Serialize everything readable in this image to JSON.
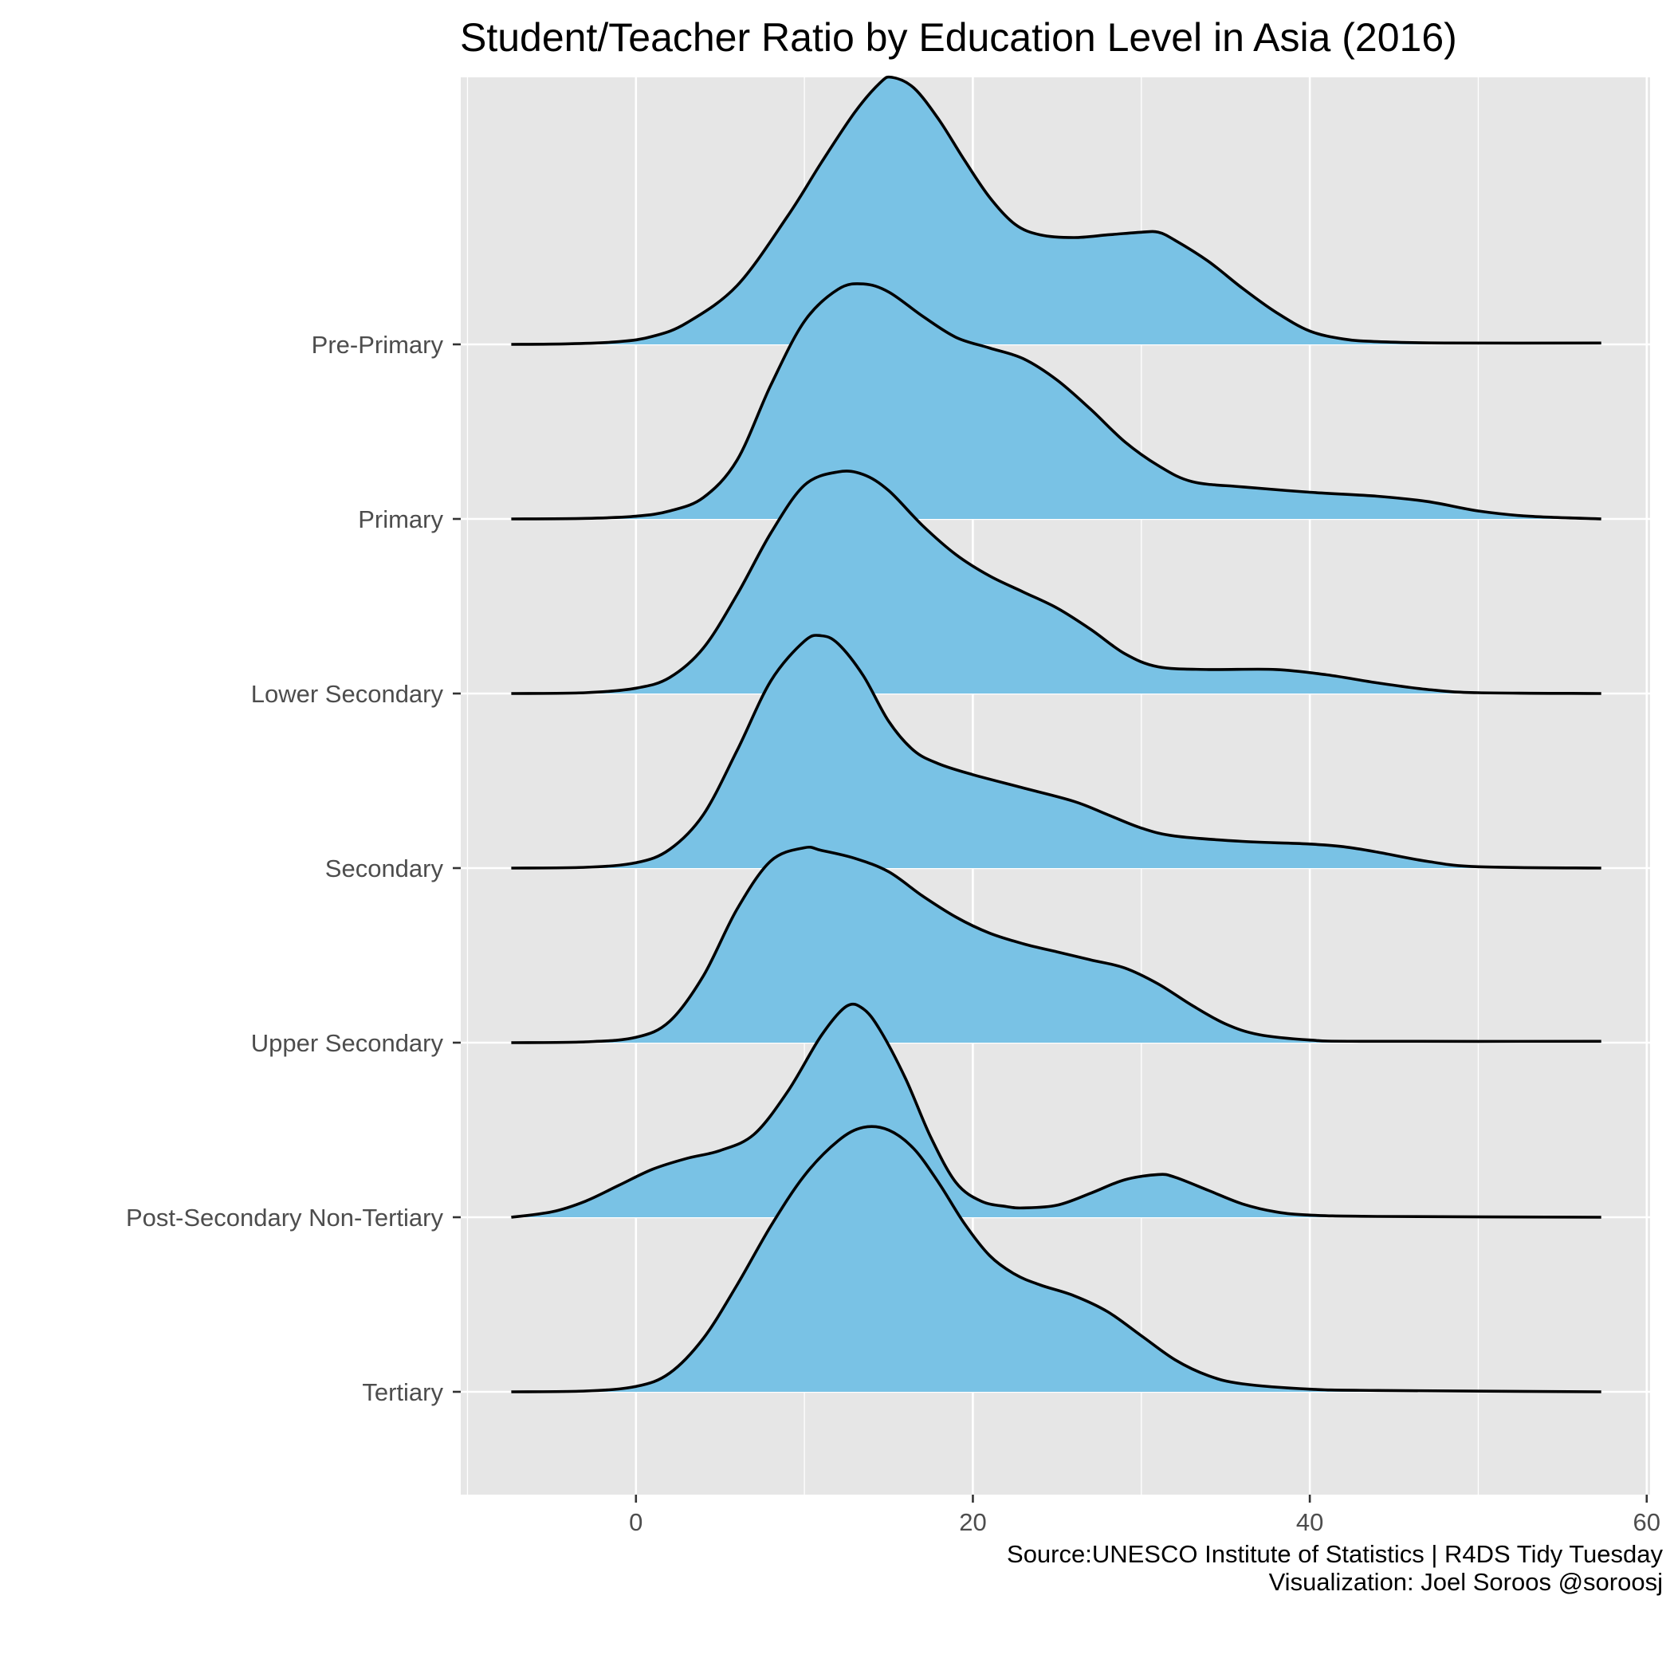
{
  "chart_data": {
    "type": "ridgeline",
    "title": "Student/Teacher Ratio by Education Level in Asia (2016)",
    "caption_lines": [
      "Source:UNESCO Institute of Statistics  |  R4DS Tidy Tuesday",
      "Visualization: Joel Soroos @soroosj"
    ],
    "xlim": [
      -10.4,
      60.2
    ],
    "x_ticks": [
      0,
      20,
      40,
      60
    ],
    "x_tick_labels": [
      "0",
      "20",
      "40",
      "60"
    ],
    "grid": true,
    "density_range": [
      -7.4,
      57.3
    ],
    "colors": {
      "fill": "#79c2e5",
      "line": "#000000",
      "panel": "#e6e6e6"
    },
    "categories": [
      "Pre-Primary",
      "Primary",
      "Lower Secondary",
      "Secondary",
      "Upper Secondary",
      "Post-Secondary Non-Tertiary",
      "Tertiary"
    ],
    "series": [
      {
        "category": "Pre-Primary",
        "points": [
          [
            -7.4,
            0
          ],
          [
            -4,
            0.002
          ],
          [
            -1,
            0.01
          ],
          [
            1,
            0.03
          ],
          [
            3,
            0.08
          ],
          [
            6,
            0.22
          ],
          [
            9,
            0.48
          ],
          [
            11,
            0.68
          ],
          [
            13,
            0.87
          ],
          [
            14.5,
            0.98
          ],
          [
            15.2,
            1.0
          ],
          [
            16.5,
            0.96
          ],
          [
            18,
            0.84
          ],
          [
            19.5,
            0.69
          ],
          [
            21,
            0.55
          ],
          [
            22.5,
            0.45
          ],
          [
            24,
            0.41
          ],
          [
            26,
            0.4
          ],
          [
            28,
            0.41
          ],
          [
            30,
            0.42
          ],
          [
            31,
            0.42
          ],
          [
            32,
            0.39
          ],
          [
            34,
            0.31
          ],
          [
            36,
            0.21
          ],
          [
            38,
            0.12
          ],
          [
            40,
            0.05
          ],
          [
            42,
            0.02
          ],
          [
            44,
            0.01
          ],
          [
            48,
            0.005
          ],
          [
            57.3,
            0.005
          ]
        ]
      },
      {
        "category": "Primary",
        "points": [
          [
            -7.4,
            0
          ],
          [
            -3,
            0.002
          ],
          [
            0,
            0.01
          ],
          [
            2,
            0.03
          ],
          [
            4,
            0.08
          ],
          [
            6,
            0.22
          ],
          [
            8,
            0.5
          ],
          [
            10,
            0.74
          ],
          [
            12,
            0.86
          ],
          [
            13.5,
            0.88
          ],
          [
            15,
            0.85
          ],
          [
            17,
            0.76
          ],
          [
            19,
            0.68
          ],
          [
            21,
            0.64
          ],
          [
            23,
            0.6
          ],
          [
            25,
            0.52
          ],
          [
            27,
            0.41
          ],
          [
            29,
            0.29
          ],
          [
            31,
            0.2
          ],
          [
            33,
            0.14
          ],
          [
            36,
            0.12
          ],
          [
            40,
            0.1
          ],
          [
            44,
            0.085
          ],
          [
            47,
            0.065
          ],
          [
            50,
            0.03
          ],
          [
            53,
            0.01
          ],
          [
            57.3,
            0
          ]
        ]
      },
      {
        "category": "Lower Secondary",
        "points": [
          [
            -7.4,
            0
          ],
          [
            -3,
            0.003
          ],
          [
            0,
            0.02
          ],
          [
            2,
            0.06
          ],
          [
            4,
            0.17
          ],
          [
            6,
            0.37
          ],
          [
            8,
            0.6
          ],
          [
            10,
            0.78
          ],
          [
            12,
            0.83
          ],
          [
            13.5,
            0.82
          ],
          [
            15,
            0.76
          ],
          [
            17,
            0.63
          ],
          [
            19,
            0.52
          ],
          [
            21,
            0.44
          ],
          [
            23,
            0.38
          ],
          [
            25,
            0.32
          ],
          [
            27,
            0.24
          ],
          [
            29,
            0.15
          ],
          [
            31,
            0.1
          ],
          [
            34,
            0.09
          ],
          [
            38,
            0.09
          ],
          [
            41,
            0.07
          ],
          [
            44,
            0.04
          ],
          [
            47,
            0.015
          ],
          [
            50,
            0.003
          ],
          [
            57.3,
            0
          ]
        ]
      },
      {
        "category": "Secondary",
        "points": [
          [
            -7.4,
            0
          ],
          [
            -3,
            0.003
          ],
          [
            0,
            0.02
          ],
          [
            2,
            0.07
          ],
          [
            4,
            0.2
          ],
          [
            6,
            0.44
          ],
          [
            8,
            0.7
          ],
          [
            10,
            0.85
          ],
          [
            11,
            0.87
          ],
          [
            12,
            0.84
          ],
          [
            13.5,
            0.72
          ],
          [
            15,
            0.55
          ],
          [
            16.5,
            0.44
          ],
          [
            18,
            0.39
          ],
          [
            20,
            0.35
          ],
          [
            23,
            0.3
          ],
          [
            26,
            0.25
          ],
          [
            28,
            0.2
          ],
          [
            30,
            0.15
          ],
          [
            32,
            0.12
          ],
          [
            36,
            0.1
          ],
          [
            40,
            0.09
          ],
          [
            42,
            0.08
          ],
          [
            44,
            0.06
          ],
          [
            47,
            0.025
          ],
          [
            50,
            0.005
          ],
          [
            57.3,
            0
          ]
        ]
      },
      {
        "category": "Upper Secondary",
        "points": [
          [
            -7.4,
            0
          ],
          [
            -3,
            0.003
          ],
          [
            0,
            0.02
          ],
          [
            2,
            0.08
          ],
          [
            4,
            0.25
          ],
          [
            6,
            0.5
          ],
          [
            8,
            0.68
          ],
          [
            10,
            0.73
          ],
          [
            11,
            0.72
          ],
          [
            13,
            0.69
          ],
          [
            15,
            0.64
          ],
          [
            17,
            0.55
          ],
          [
            19,
            0.47
          ],
          [
            21,
            0.41
          ],
          [
            23,
            0.37
          ],
          [
            25,
            0.34
          ],
          [
            27,
            0.31
          ],
          [
            29,
            0.28
          ],
          [
            31,
            0.22
          ],
          [
            33,
            0.14
          ],
          [
            35,
            0.07
          ],
          [
            37,
            0.03
          ],
          [
            40,
            0.01
          ],
          [
            43,
            0.005
          ],
          [
            57.3,
            0.005
          ]
        ]
      },
      {
        "category": "Post-Secondary Non-Tertiary",
        "points": [
          [
            -7.4,
            0
          ],
          [
            -5,
            0.02
          ],
          [
            -3,
            0.06
          ],
          [
            -1,
            0.12
          ],
          [
            1,
            0.18
          ],
          [
            3,
            0.22
          ],
          [
            5,
            0.25
          ],
          [
            7,
            0.31
          ],
          [
            9,
            0.47
          ],
          [
            11,
            0.68
          ],
          [
            12.5,
            0.79
          ],
          [
            13.5,
            0.78
          ],
          [
            14.5,
            0.7
          ],
          [
            16,
            0.52
          ],
          [
            17.5,
            0.3
          ],
          [
            19,
            0.13
          ],
          [
            20.5,
            0.06
          ],
          [
            22,
            0.04
          ],
          [
            23,
            0.035
          ],
          [
            25,
            0.045
          ],
          [
            27,
            0.09
          ],
          [
            29,
            0.14
          ],
          [
            31,
            0.16
          ],
          [
            32,
            0.15
          ],
          [
            34,
            0.1
          ],
          [
            36,
            0.05
          ],
          [
            38,
            0.02
          ],
          [
            40,
            0.008
          ],
          [
            44,
            0.003
          ],
          [
            57.3,
            0
          ]
        ]
      },
      {
        "category": "Tertiary",
        "points": [
          [
            -7.4,
            0
          ],
          [
            -3,
            0.003
          ],
          [
            0,
            0.02
          ],
          [
            2,
            0.07
          ],
          [
            4,
            0.2
          ],
          [
            6,
            0.4
          ],
          [
            8,
            0.62
          ],
          [
            10,
            0.81
          ],
          [
            12,
            0.94
          ],
          [
            13.5,
            0.99
          ],
          [
            15,
            0.98
          ],
          [
            16.5,
            0.91
          ],
          [
            18,
            0.78
          ],
          [
            19.5,
            0.63
          ],
          [
            21,
            0.51
          ],
          [
            22.5,
            0.44
          ],
          [
            24,
            0.4
          ],
          [
            26,
            0.36
          ],
          [
            28,
            0.3
          ],
          [
            30,
            0.21
          ],
          [
            32,
            0.12
          ],
          [
            34,
            0.06
          ],
          [
            36,
            0.03
          ],
          [
            40,
            0.01
          ],
          [
            44,
            0.005
          ],
          [
            57.3,
            0
          ]
        ]
      }
    ]
  }
}
